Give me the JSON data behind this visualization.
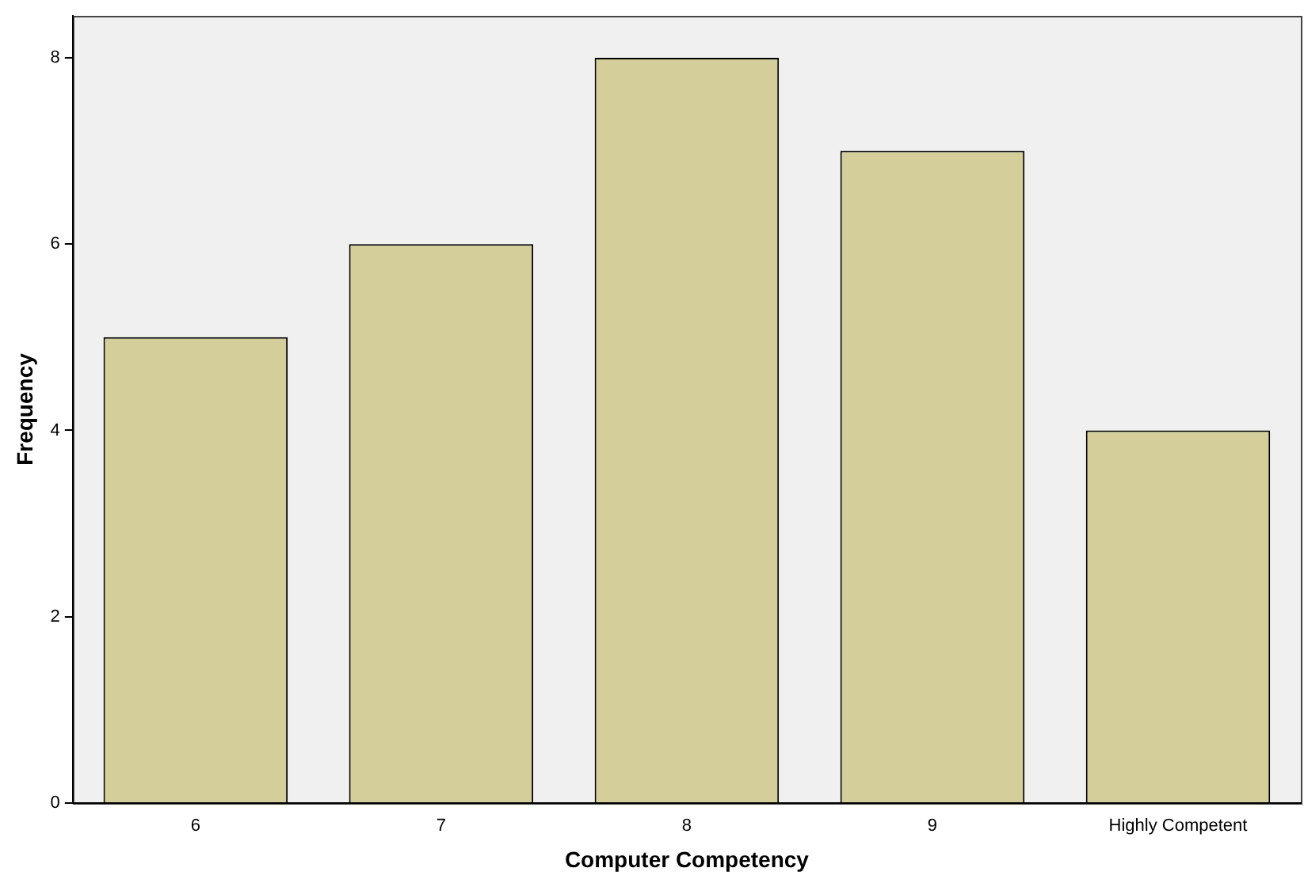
{
  "chart_data": {
    "type": "bar",
    "xlabel": "Computer Competency",
    "ylabel": "Frequency",
    "categories": [
      "6",
      "7",
      "8",
      "9",
      "Highly Competent"
    ],
    "values": [
      5,
      6,
      8,
      7,
      4
    ],
    "color": "#d3ce9a",
    "ylim": [
      0,
      8.45
    ],
    "yticks": [
      0,
      2,
      4,
      6,
      8
    ],
    "grid": false,
    "legend": false
  }
}
